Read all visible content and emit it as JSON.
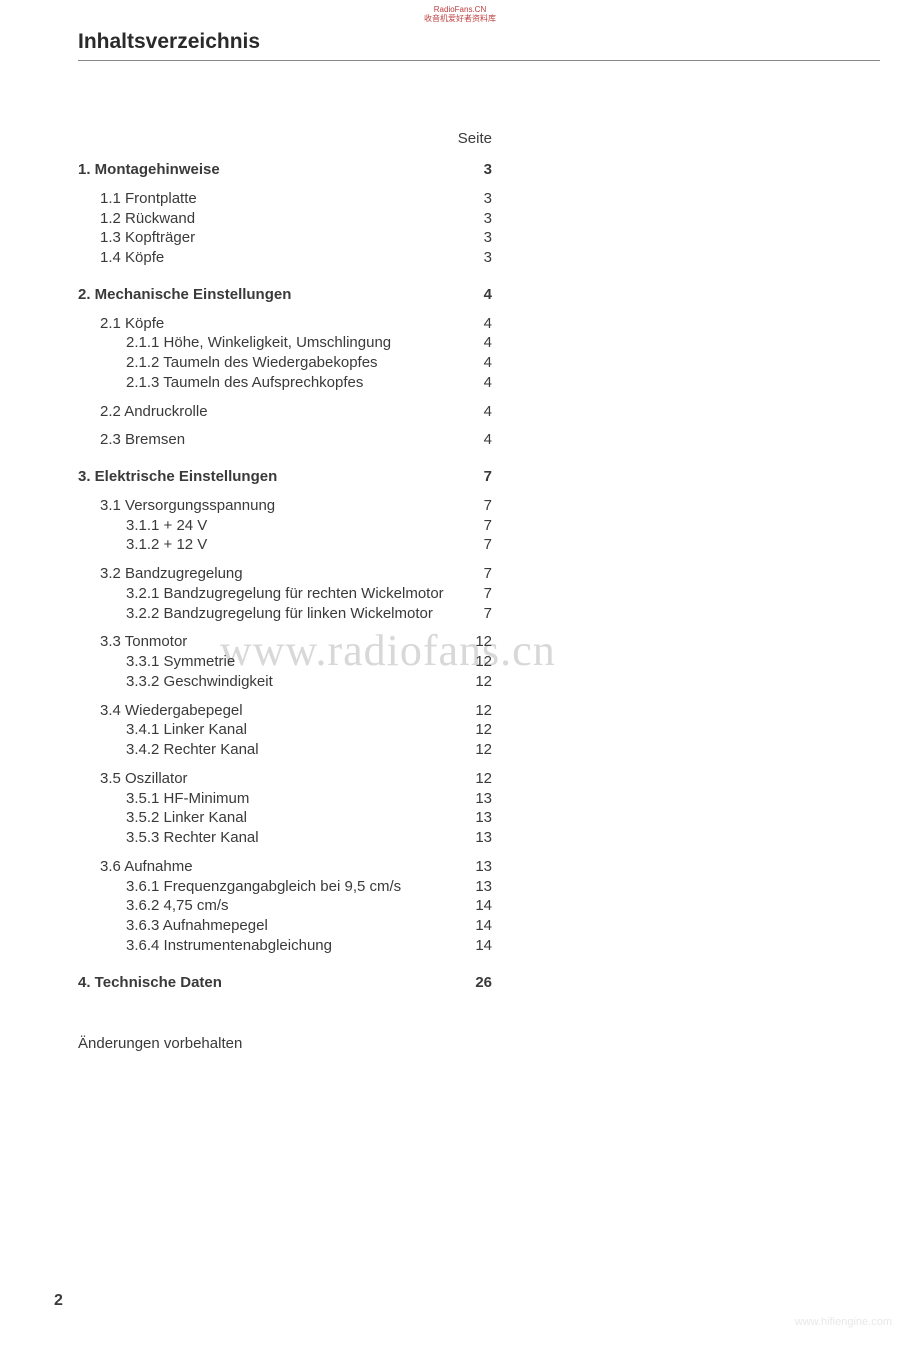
{
  "stamp": {
    "line1": "RadioFans.CN",
    "line2": "收音机爱好者资料库"
  },
  "title": "Inhaltsverzeichnis",
  "pageColHeader": "Seite",
  "watermark": "www.radiofans.cn",
  "watermarkSmall": "www.hifiengine.com",
  "footnote": "Änderungen vorbehalten",
  "pageNumber": "2",
  "toc": [
    {
      "type": "section",
      "num": "1.",
      "label": "Montagehinweise",
      "page": "3",
      "first": true
    },
    {
      "type": "sub1",
      "num": "1.1",
      "label": "Frontplatte",
      "page": "3"
    },
    {
      "type": "sub1",
      "num": "1.2",
      "label": "Rückwand",
      "page": "3"
    },
    {
      "type": "sub1",
      "num": "1.3",
      "label": "Kopfträger",
      "page": "3"
    },
    {
      "type": "sub1",
      "num": "1.4",
      "label": "Köpfe",
      "page": "3"
    },
    {
      "type": "section",
      "num": "2.",
      "label": "Mechanische Einstellungen",
      "page": "4"
    },
    {
      "type": "sub1",
      "num": "2.1",
      "label": "Köpfe",
      "page": "4"
    },
    {
      "type": "sub2",
      "num": "2.1.1",
      "label": "Höhe, Winkeligkeit, Umschlingung",
      "page": "4"
    },
    {
      "type": "sub2",
      "num": "2.1.2",
      "label": "Taumeln des Wiedergabekopfes",
      "page": "4"
    },
    {
      "type": "sub2",
      "num": "2.1.3",
      "label": "Taumeln des Aufsprechkopfes",
      "page": "4"
    },
    {
      "type": "sub1",
      "num": "2.2",
      "label": "Andruckrolle",
      "page": "4",
      "gap": true
    },
    {
      "type": "sub1",
      "num": "2.3",
      "label": "Bremsen",
      "page": "4",
      "gap": true
    },
    {
      "type": "section",
      "num": "3.",
      "label": "Elektrische Einstellungen",
      "page": "7"
    },
    {
      "type": "sub1",
      "num": "3.1",
      "label": "Versorgungsspannung",
      "page": "7"
    },
    {
      "type": "sub2",
      "num": "3.1.1",
      "label": "+ 24 V",
      "page": "7"
    },
    {
      "type": "sub2",
      "num": "3.1.2",
      "label": "+ 12 V",
      "page": "7"
    },
    {
      "type": "sub1",
      "num": "3.2",
      "label": "Bandzugregelung",
      "page": "7",
      "gap": true
    },
    {
      "type": "sub2",
      "num": "3.2.1",
      "label": "Bandzugregelung für rechten Wickelmotor",
      "page": "7"
    },
    {
      "type": "sub2",
      "num": "3.2.2",
      "label": "Bandzugregelung für linken Wickelmotor",
      "page": "7"
    },
    {
      "type": "sub1",
      "num": "3.3",
      "label": "Tonmotor",
      "page": "12",
      "gap": true
    },
    {
      "type": "sub2",
      "num": "3.3.1",
      "label": "Symmetrie",
      "page": "12"
    },
    {
      "type": "sub2",
      "num": "3.3.2",
      "label": "Geschwindigkeit",
      "page": "12"
    },
    {
      "type": "sub1",
      "num": "3.4",
      "label": "Wiedergabepegel",
      "page": "12",
      "gap": true
    },
    {
      "type": "sub2",
      "num": "3.4.1",
      "label": "Linker Kanal",
      "page": "12"
    },
    {
      "type": "sub2",
      "num": "3.4.2",
      "label": "Rechter Kanal",
      "page": "12"
    },
    {
      "type": "sub1",
      "num": "3.5",
      "label": "Oszillator",
      "page": "12",
      "gap": true
    },
    {
      "type": "sub2",
      "num": "3.5.1",
      "label": "HF-Minimum",
      "page": "13"
    },
    {
      "type": "sub2",
      "num": "3.5.2",
      "label": "Linker Kanal",
      "page": "13"
    },
    {
      "type": "sub2",
      "num": "3.5.3",
      "label": "Rechter Kanal",
      "page": "13"
    },
    {
      "type": "sub1",
      "num": "3.6",
      "label": "Aufnahme",
      "page": "13",
      "gap": true
    },
    {
      "type": "sub2",
      "num": "3.6.1",
      "label": "Frequenzgangabgleich bei 9,5 cm/s",
      "page": "13"
    },
    {
      "type": "sub2",
      "num": "3.6.2",
      "label": "4,75 cm/s",
      "page": "14"
    },
    {
      "type": "sub2",
      "num": "3.6.3",
      "label": "Aufnahmepegel",
      "page": "14"
    },
    {
      "type": "sub2",
      "num": "3.6.4",
      "label": "Instrumentenabgleichung",
      "page": "14"
    },
    {
      "type": "section",
      "num": "4.",
      "label": "Technische Daten",
      "page": "26"
    }
  ]
}
